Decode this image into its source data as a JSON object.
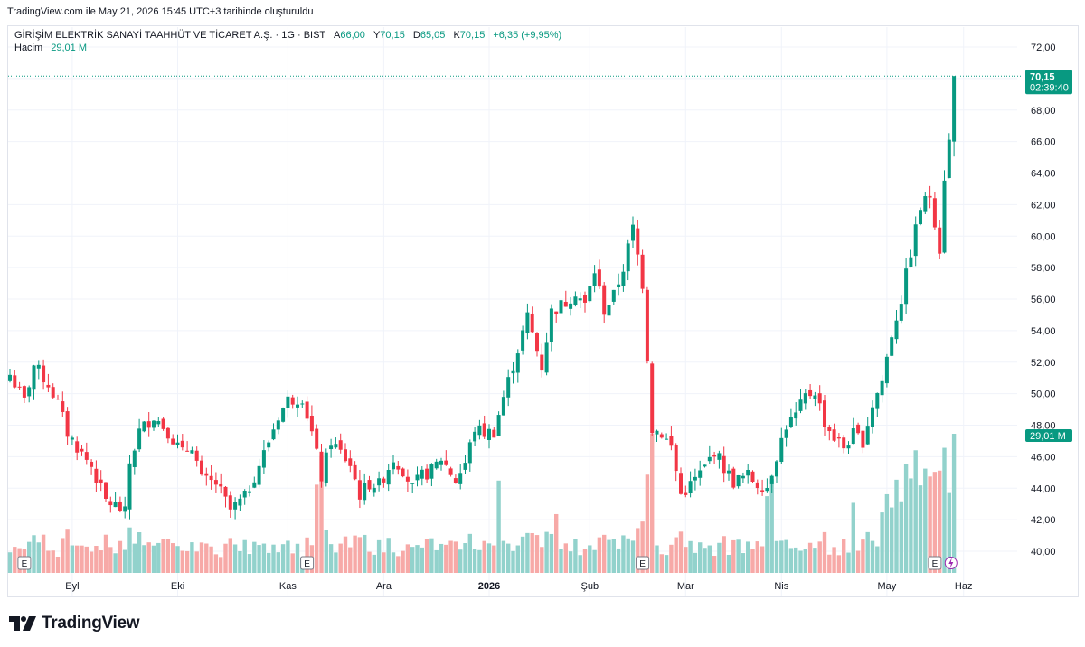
{
  "caption": "TradingView.com ile May 21, 2026 15:45 UTC+3 tarihinde oluşturuldu",
  "legend": {
    "symbol": "GİRİŞİM ELEKTRİK SANAYİ TAAHHÜT VE TİCARET A.Ş. · 1G · BIST",
    "open_label": "A",
    "open": "66,00",
    "high_label": "Y",
    "high": "70,15",
    "low_label": "D",
    "low": "65,05",
    "close_label": "K",
    "close": "70,15",
    "change": "+6,35 (+9,95%)",
    "volume_label": "Hacim",
    "volume": "29,01 M"
  },
  "price_badge": {
    "price": "70,15",
    "countdown": "02:39:40",
    "volume": "29,01 M"
  },
  "brand": "TradingView",
  "colors": {
    "up": "#089981",
    "down": "#f23645",
    "up_vol": "#92d2cc",
    "down_vol": "#f7a9a7"
  },
  "chart_data": {
    "type": "candlestick",
    "y_axis": {
      "min": 39,
      "max": 73,
      "ticks": [
        "40,00",
        "42,00",
        "44,00",
        "46,00",
        "48,00",
        "50,00",
        "52,00",
        "54,00",
        "56,00",
        "58,00",
        "60,00",
        "62,00",
        "64,00",
        "66,00",
        "68,00",
        "70,00",
        "72,00"
      ]
    },
    "x_ticks": [
      {
        "label": "Eyl",
        "index": 13
      },
      {
        "label": "Eki",
        "index": 35
      },
      {
        "label": "Kas",
        "index": 58
      },
      {
        "label": "Ara",
        "index": 78
      },
      {
        "label": "2026",
        "index": 100,
        "bold": true
      },
      {
        "label": "Şub",
        "index": 121
      },
      {
        "label": "Mar",
        "index": 141
      },
      {
        "label": "Nis",
        "index": 161
      },
      {
        "label": "May",
        "index": 183
      },
      {
        "label": "Haz",
        "index": 199
      }
    ],
    "earnings_markers": [
      {
        "label": "E",
        "index": 3
      },
      {
        "label": "E",
        "index": 62
      },
      {
        "label": "E",
        "index": 132
      },
      {
        "label": "E",
        "index": 193
      }
    ],
    "anchors": [
      [
        0,
        51.2
      ],
      [
        3,
        49.5
      ],
      [
        5,
        51.8
      ],
      [
        8,
        50.6
      ],
      [
        10,
        49.4
      ],
      [
        12,
        47.5
      ],
      [
        15,
        46.2
      ],
      [
        17,
        45.4
      ],
      [
        20,
        43.2
      ],
      [
        22,
        42.9
      ],
      [
        24,
        42.4
      ],
      [
        25,
        45.6
      ],
      [
        27,
        47.6
      ],
      [
        30,
        48.6
      ],
      [
        33,
        47.6
      ],
      [
        36,
        46.2
      ],
      [
        38,
        46.8
      ],
      [
        40,
        44.5
      ],
      [
        43,
        44.3
      ],
      [
        46,
        42.6
      ],
      [
        49,
        43.4
      ],
      [
        53,
        46.2
      ],
      [
        56,
        48.6
      ],
      [
        58,
        49.6
      ],
      [
        61,
        49.8
      ],
      [
        63,
        47.5
      ],
      [
        65,
        44.7
      ],
      [
        67,
        47.0
      ],
      [
        71,
        45.5
      ],
      [
        73,
        43.6
      ],
      [
        75,
        44.3
      ],
      [
        77,
        44.2
      ],
      [
        80,
        45.9
      ],
      [
        82,
        45.2
      ],
      [
        84,
        44.0
      ],
      [
        86,
        44.8
      ],
      [
        88,
        45.1
      ],
      [
        90,
        45.9
      ],
      [
        93,
        44.5
      ],
      [
        95,
        45.6
      ],
      [
        97,
        47.8
      ],
      [
        99,
        47.5
      ],
      [
        101,
        47.6
      ],
      [
        103,
        49.8
      ],
      [
        106,
        52.8
      ],
      [
        108,
        54.9
      ],
      [
        111,
        51.7
      ],
      [
        113,
        55.2
      ],
      [
        116,
        55.8
      ],
      [
        118,
        56.5
      ],
      [
        120,
        55.6
      ],
      [
        122,
        57.8
      ],
      [
        124,
        55.3
      ],
      [
        126,
        56.2
      ],
      [
        128,
        58.0
      ],
      [
        130,
        60.5
      ],
      [
        132,
        57.0
      ],
      [
        134,
        47.8
      ],
      [
        136,
        47.5
      ],
      [
        138,
        46.6
      ],
      [
        140,
        43.6
      ],
      [
        142,
        44.2
      ],
      [
        145,
        45.3
      ],
      [
        147,
        46.4
      ],
      [
        149,
        45.3
      ],
      [
        151,
        44.4
      ],
      [
        154,
        44.8
      ],
      [
        156,
        44.3
      ],
      [
        158,
        44.1
      ],
      [
        160,
        46.1
      ],
      [
        162,
        48.0
      ],
      [
        164,
        48.6
      ],
      [
        166,
        49.8
      ],
      [
        168,
        50.2
      ],
      [
        170,
        48.2
      ],
      [
        172,
        47.2
      ],
      [
        174,
        46.6
      ],
      [
        176,
        47.4
      ],
      [
        178,
        47.0
      ],
      [
        180,
        49.3
      ],
      [
        182,
        50.8
      ],
      [
        184,
        53.8
      ],
      [
        186,
        56.0
      ],
      [
        188,
        59.0
      ],
      [
        190,
        61.8
      ],
      [
        192,
        62.6
      ],
      [
        193,
        61.0
      ],
      [
        194,
        59.2
      ],
      [
        195,
        63.8
      ],
      [
        196,
        66.0
      ],
      [
        197,
        70.15
      ]
    ],
    "last_candle": {
      "open": 66.0,
      "high": 70.15,
      "low": 65.05,
      "close": 70.15,
      "volume": 29.01
    }
  }
}
